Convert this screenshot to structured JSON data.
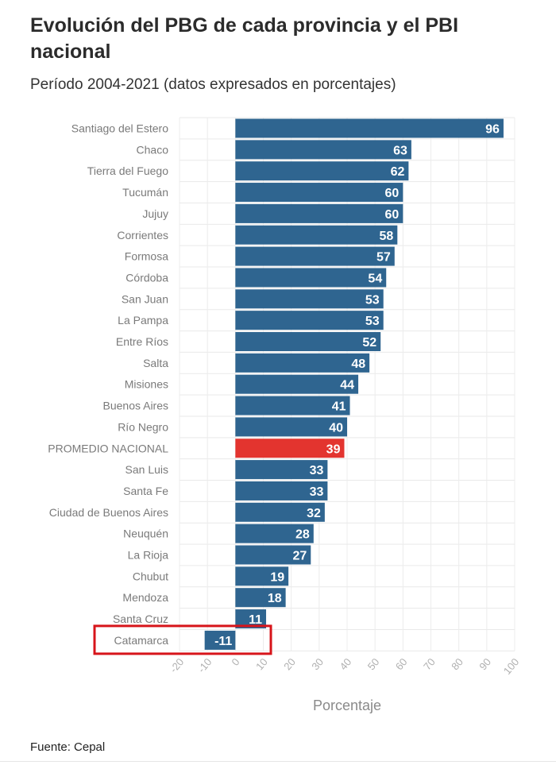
{
  "header": {
    "title": "Evolución del PBG de cada provincia y el PBI nacional",
    "subtitle": "Período 2004-2021 (datos expresados en porcentajes)"
  },
  "source": "Fuente: Cepal",
  "chart_data": {
    "type": "bar",
    "orientation": "horizontal",
    "title": "Evolución del PBG de cada provincia y el PBI nacional",
    "subtitle": "Período 2004-2021 (datos expresados en porcentajes)",
    "xlabel": "Porcentaje",
    "ylabel": "",
    "xlim": [
      -20,
      100
    ],
    "x_ticks": [
      -20,
      -10,
      0,
      10,
      20,
      30,
      40,
      50,
      60,
      70,
      80,
      90,
      100
    ],
    "grid": true,
    "categories": [
      "Santiago del Estero",
      "Chaco",
      "Tierra del Fuego",
      "Tucumán",
      "Jujuy",
      "Corrientes",
      "Formosa",
      "Córdoba",
      "San Juan",
      "La Pampa",
      "Entre Ríos",
      "Salta",
      "Misiones",
      "Buenos Aires",
      "Río Negro",
      "PROMEDIO NACIONAL",
      "San Luis",
      "Santa Fe",
      "Ciudad de Buenos Aires",
      "Neuquén",
      "La Rioja",
      "Chubut",
      "Mendoza",
      "Santa Cruz",
      "Catamarca"
    ],
    "values": [
      96,
      63,
      62,
      60,
      60,
      58,
      57,
      54,
      53,
      53,
      52,
      48,
      44,
      41,
      40,
      39,
      33,
      33,
      32,
      28,
      27,
      19,
      18,
      11,
      -11
    ],
    "colors": {
      "bar": "#2f6590",
      "highlight": "#e3342f"
    },
    "highlighted_categories": [
      "PROMEDIO NACIONAL"
    ],
    "annotated_categories": [
      "Catamarca"
    ],
    "annotation_box_color": "#d7141a"
  }
}
